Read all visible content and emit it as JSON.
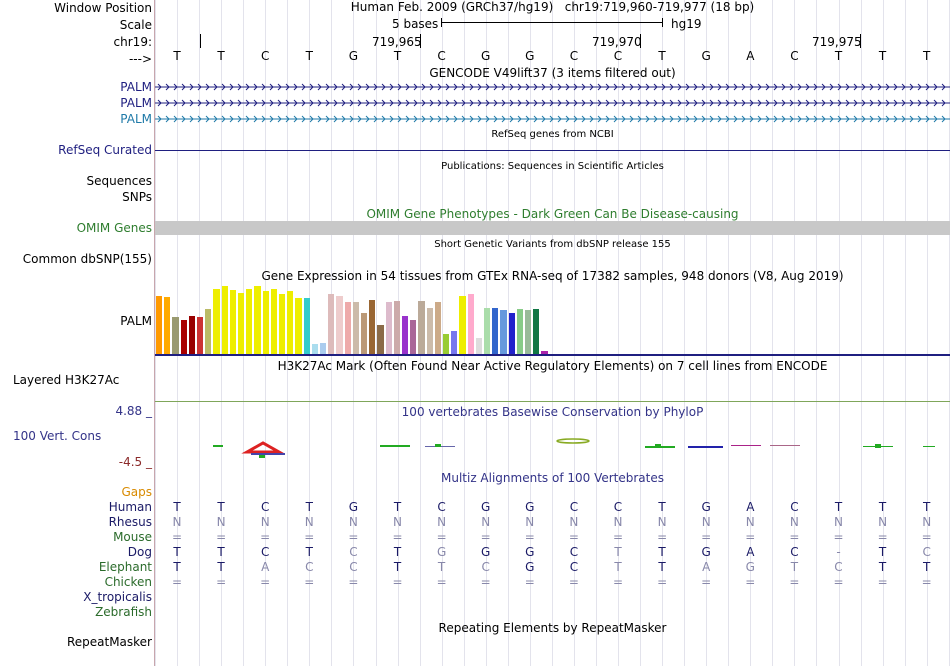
{
  "header": {
    "window_position_label": "Window Position",
    "scale_label": "Scale",
    "chr_label": "chr19:",
    "arrow_label": "--->",
    "assembly_title": "Human Feb. 2009 (GRCh37/hg19)",
    "position_text": "chr19:719,960-719,977 (18 bp)",
    "scale_text": "5 bases",
    "db_label": "hg19",
    "coords": [
      "719,965",
      "719,970",
      "719,975"
    ]
  },
  "reference_bases": [
    "T",
    "T",
    "C",
    "T",
    "G",
    "T",
    "C",
    "G",
    "G",
    "C",
    "C",
    "T",
    "G",
    "A",
    "C",
    "T",
    "T",
    "T"
  ],
  "labels": {
    "palm1": "PALM",
    "palm2": "PALM",
    "palm3": "PALM",
    "refseq": "RefSeq Curated",
    "sequences": "Sequences",
    "snps": "SNPs",
    "omim_genes": "OMIM Genes",
    "common_dbsnp": "Common dbSNP(155)",
    "gtex_gene": "PALM",
    "layered": "Layered H3K27Ac",
    "cons_max": "4.88 _",
    "vert_cons": "100 Vert. Cons",
    "cons_min": "-4.5 _",
    "gaps": "Gaps",
    "repeatmasker": "RepeatMasker"
  },
  "track_titles": {
    "gencode": "GENCODE V49lift37 (3 items filtered out)",
    "refseq": "RefSeq genes from NCBI",
    "publications": "Publications: Sequences in Scientific Articles",
    "omim": "OMIM Gene Phenotypes - Dark Green Can Be Disease-causing",
    "dbsnp": "Short Genetic Variants from dbSNP release 155",
    "gtex": "Gene Expression in 54 tissues from GTEx RNA-seq of 17382 samples, 948 donors (V8, Aug 2019)",
    "h3k27ac": "H3K27Ac Mark (Often Found Near Active Regulatory Elements) on 7 cell lines from ENCODE",
    "phylop": "100 vertebrates Basewise Conservation by PhyloP",
    "multiz": "Multiz Alignments of 100 Vertebrates",
    "repeatmasker": "Repeating Elements by RepeatMasker"
  },
  "alignment": [
    {
      "species": "Human",
      "color": "#1a1a66",
      "seq": [
        "T",
        "T",
        "C",
        "T",
        "G",
        "T",
        "C",
        "G",
        "G",
        "C",
        "C",
        "T",
        "G",
        "A",
        "C",
        "T",
        "T",
        "T"
      ]
    },
    {
      "species": "Rhesus",
      "color": "#1a1a66",
      "seq": [
        "N",
        "N",
        "N",
        "N",
        "N",
        "N",
        "N",
        "N",
        "N",
        "N",
        "N",
        "N",
        "N",
        "N",
        "N",
        "N",
        "N",
        "N"
      ]
    },
    {
      "species": "Mouse",
      "color": "#2b6b2b",
      "seq": [
        "=",
        "=",
        "=",
        "=",
        "=",
        "=",
        "=",
        "=",
        "=",
        "=",
        "=",
        "=",
        "=",
        "=",
        "=",
        "=",
        "=",
        "="
      ]
    },
    {
      "species": "Dog",
      "color": "#1a1a66",
      "seq": [
        "T",
        "T",
        "C",
        "T",
        "C",
        "T",
        "G",
        "G",
        "G",
        "C",
        "T",
        "T",
        "G",
        "A",
        "C",
        "-",
        "T",
        "C"
      ]
    },
    {
      "species": "Elephant",
      "color": "#2b6b2b",
      "seq": [
        "T",
        "T",
        "A",
        "C",
        "C",
        "T",
        "T",
        "C",
        "G",
        "C",
        "T",
        "T",
        "A",
        "G",
        "T",
        "C",
        "T",
        "T"
      ]
    },
    {
      "species": "Chicken",
      "color": "#2b6b2b",
      "seq": [
        "=",
        "=",
        "=",
        "=",
        "=",
        "=",
        "=",
        "=",
        "=",
        "=",
        "=",
        "=",
        "=",
        "=",
        "=",
        "=",
        "=",
        "="
      ]
    },
    {
      "species": "X_tropicalis",
      "color": "#1a1a66",
      "seq": []
    },
    {
      "species": "Zebrafish",
      "color": "#2b6b2b",
      "seq": []
    }
  ],
  "colors": {
    "palm_gencode": "#1f1f80",
    "palm_refseq": "#1f7aa8",
    "omim_bar": "#c8c8c8",
    "omim_title": "#2e7d2e",
    "phylop_title": "#333388",
    "cons_min_color": "#8b2a2a",
    "gaps_color": "#d88a00"
  },
  "gtex_bars": [
    {
      "value": 0.86,
      "color": "#ff9900"
    },
    {
      "value": 0.84,
      "color": "#ffaa00"
    },
    {
      "value": 0.54,
      "color": "#9a9a70"
    },
    {
      "value": 0.5,
      "color": "#aa0000"
    },
    {
      "value": 0.56,
      "color": "#990000"
    },
    {
      "value": 0.54,
      "color": "#cc3333"
    },
    {
      "value": 0.66,
      "color": "#bbbb66"
    },
    {
      "value": 0.96,
      "color": "#eeee00"
    },
    {
      "value": 1.0,
      "color": "#eeee00"
    },
    {
      "value": 0.94,
      "color": "#eeee00"
    },
    {
      "value": 0.9,
      "color": "#eeee00"
    },
    {
      "value": 0.96,
      "color": "#eeee00"
    },
    {
      "value": 1.0,
      "color": "#eeee00"
    },
    {
      "value": 0.92,
      "color": "#eeee00"
    },
    {
      "value": 0.96,
      "color": "#eeee00"
    },
    {
      "value": 0.88,
      "color": "#eeee00"
    },
    {
      "value": 0.92,
      "color": "#eeee00"
    },
    {
      "value": 0.82,
      "color": "#eeee00"
    },
    {
      "value": 0.82,
      "color": "#33cccc"
    },
    {
      "value": 0.14,
      "color": "#aaddee"
    },
    {
      "value": 0.16,
      "color": "#aaccee"
    },
    {
      "value": 0.88,
      "color": "#ddbbbb"
    },
    {
      "value": 0.86,
      "color": "#eecccc"
    },
    {
      "value": 0.76,
      "color": "#eeaaaa"
    },
    {
      "value": 0.76,
      "color": "#ccbbaa"
    },
    {
      "value": 0.6,
      "color": "#bb9977"
    },
    {
      "value": 0.8,
      "color": "#996633"
    },
    {
      "value": 0.42,
      "color": "#8b6b48"
    },
    {
      "value": 0.76,
      "color": "#ddbbcc"
    },
    {
      "value": 0.78,
      "color": "#ccaaaa"
    },
    {
      "value": 0.56,
      "color": "#9933cc"
    },
    {
      "value": 0.5,
      "color": "#aa6699"
    },
    {
      "value": 0.78,
      "color": "#bbaa99"
    },
    {
      "value": 0.68,
      "color": "#ccbbaa"
    },
    {
      "value": 0.76,
      "color": "#ccaa88"
    },
    {
      "value": 0.3,
      "color": "#99cc33"
    },
    {
      "value": 0.34,
      "color": "#7777ee"
    },
    {
      "value": 0.86,
      "color": "#eeee00"
    },
    {
      "value": 0.88,
      "color": "#ffaacc"
    },
    {
      "value": 0.24,
      "color": "#dddddd"
    },
    {
      "value": 0.68,
      "color": "#aaddaa"
    },
    {
      "value": 0.68,
      "color": "#3366cc"
    },
    {
      "value": 0.64,
      "color": "#6699dd"
    },
    {
      "value": 0.6,
      "color": "#2222cc"
    },
    {
      "value": 0.66,
      "color": "#88cc88"
    },
    {
      "value": 0.64,
      "color": "#99bb99"
    },
    {
      "value": 0.66,
      "color": "#117744"
    },
    {
      "value": 0.04,
      "color": "#aa22aa"
    }
  ]
}
